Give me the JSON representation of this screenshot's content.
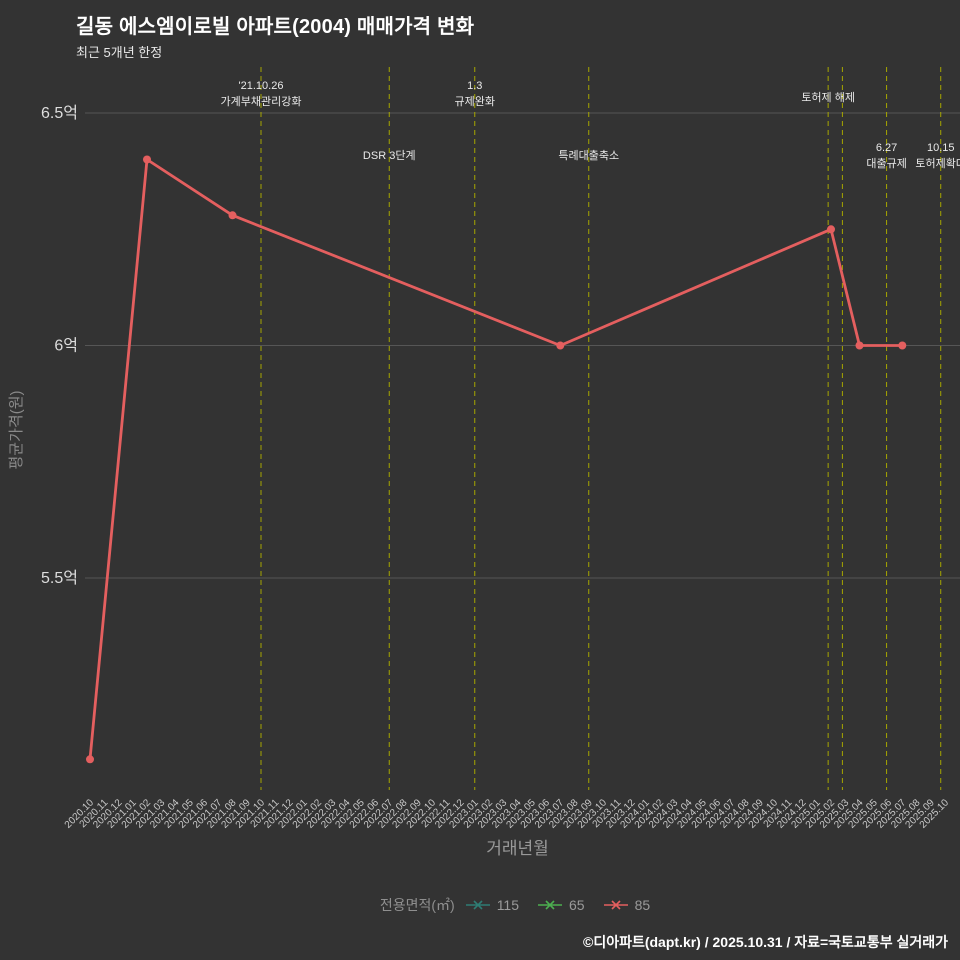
{
  "footer": {
    "credit": "©디아파트(dapt.kr) / 2025.10.31 / 자료=국토교통부 실거래가"
  },
  "chart_data": {
    "type": "line",
    "title": "길동 에스엠이로빌 아파트(2004) 매매가격 변화",
    "subtitle": "최근 5개년 한정",
    "xlabel": "거래년월",
    "ylabel": "평균가격(원)",
    "legend_title": "전용면적(㎡)",
    "unit": "억원",
    "x_range": [
      "2020.10",
      "2025.10"
    ],
    "ylim": [
      5.04,
      6.6
    ],
    "grid": "horizontal",
    "legend_position": "bottom-center",
    "y_ticks": [
      {
        "label": "6.5억",
        "value": 6.5
      },
      {
        "label": "6억",
        "value": 6.0
      },
      {
        "label": "5.5억",
        "value": 5.5
      }
    ],
    "x_tick_labels": [
      "2020.10",
      "2020.11",
      "2020.12",
      "2021.01",
      "2021.02",
      "2021.03",
      "2021.04",
      "2021.05",
      "2021.06",
      "2021.07",
      "2021.08",
      "2021.09",
      "2021.10",
      "2021.11",
      "2021.12",
      "2022.01",
      "2022.02",
      "2022.03",
      "2022.04",
      "2022.05",
      "2022.06",
      "2022.07",
      "2022.08",
      "2022.09",
      "2022.10",
      "2022.11",
      "2022.12",
      "2023.01",
      "2023.02",
      "2023.03",
      "2023.04",
      "2023.05",
      "2023.06",
      "2023.07",
      "2023.08",
      "2023.09",
      "2023.10",
      "2023.11",
      "2023.12",
      "2024.01",
      "2024.02",
      "2024.03",
      "2024.04",
      "2024.05",
      "2024.06",
      "2024.07",
      "2024.08",
      "2024.09",
      "2024.10",
      "2024.11",
      "2024.12",
      "2025.01",
      "2025.02",
      "2025.03",
      "2025.04",
      "2025.05",
      "2025.06",
      "2025.07",
      "2025.08",
      "2025.09",
      "2025.10"
    ],
    "series": [
      {
        "name": "115",
        "color": "#2e7d74",
        "points": []
      },
      {
        "name": "65",
        "color": "#4caf50",
        "points": []
      },
      {
        "name": "85",
        "color": "#e45f5f",
        "points": [
          {
            "month": "2020.10",
            "value": 5.11
          },
          {
            "month": "2021.02",
            "value": 6.4
          },
          {
            "month": "2021.08",
            "value": 6.28
          },
          {
            "month": "2023.07",
            "value": 6.0
          },
          {
            "month": "2025.02",
            "value": 6.25
          },
          {
            "month": "2025.04",
            "value": 6.0
          },
          {
            "month": "2025.07",
            "value": 6.0
          }
        ]
      }
    ],
    "events": [
      {
        "month_offset": 12,
        "lines": [
          "'21.10.26",
          "가계부채관리강화"
        ],
        "row": "top"
      },
      {
        "month_offset": 21,
        "lines": [
          "DSR 3단계"
        ],
        "row": "mid"
      },
      {
        "month_offset": 27,
        "lines": [
          "1.3",
          "규제완화"
        ],
        "row": "top"
      },
      {
        "month_offset": 35,
        "lines": [
          "특례대출축소"
        ],
        "row": "mid"
      },
      {
        "month_offset": 51.8,
        "lines": [
          "토허제 해제"
        ],
        "row": "top"
      },
      {
        "month_offset": 52.8,
        "lines": [],
        "row": "top"
      },
      {
        "month_offset": 55.9,
        "lines": [
          "6.27",
          "대출규제"
        ],
        "row": "mid"
      },
      {
        "month_offset": 59.7,
        "lines": [
          "10.15",
          "토허제확대"
        ],
        "row": "mid"
      }
    ],
    "colors": {
      "background": "#333333",
      "grid": "#565656",
      "event_line": "#a6a600",
      "tick_text": "#dddddd",
      "x_tick_text": "#c9c9c9",
      "annotation_text": "#eaeaea",
      "line_85": "#e45f5f"
    }
  }
}
